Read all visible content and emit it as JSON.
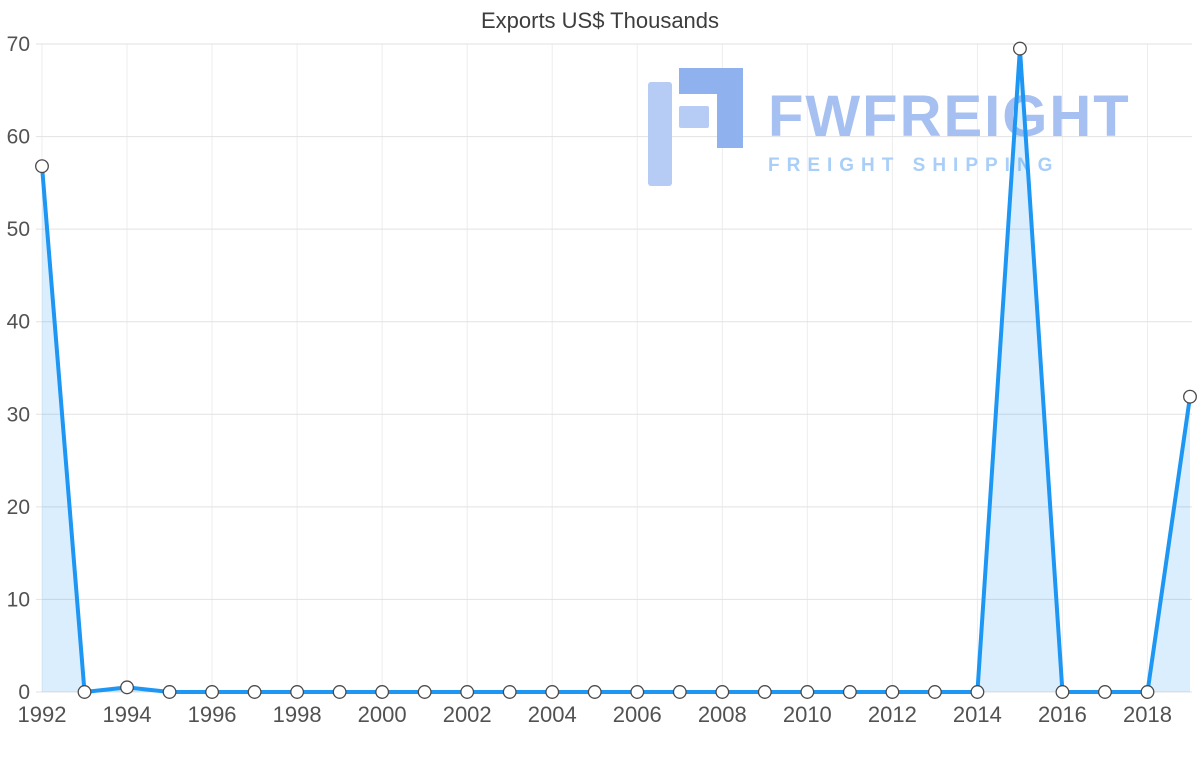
{
  "title": "Exports US$ Thousands",
  "watermark": {
    "brand": "FWFREIGHT",
    "tagline": "FREIGHT SHIPPING"
  },
  "chart_data": {
    "type": "area",
    "title": "Exports US$ Thousands",
    "x": [
      1992,
      1993,
      1994,
      1995,
      1996,
      1997,
      1998,
      1999,
      2000,
      2001,
      2002,
      2003,
      2004,
      2005,
      2006,
      2007,
      2008,
      2009,
      2010,
      2011,
      2012,
      2013,
      2014,
      2015,
      2016,
      2017,
      2018,
      2019
    ],
    "values": [
      56.8,
      0,
      0.5,
      0,
      0,
      0,
      0,
      0,
      0,
      0,
      0,
      0,
      0,
      0,
      0,
      0,
      0,
      0,
      0,
      0,
      0,
      0,
      0,
      69.5,
      0,
      0,
      0,
      31.9
    ],
    "ylim": [
      0,
      70
    ],
    "yticks": [
      0,
      10,
      20,
      30,
      40,
      50,
      60,
      70
    ],
    "xticks": [
      1992,
      1994,
      1996,
      1998,
      2000,
      2002,
      2004,
      2006,
      2008,
      2010,
      2012,
      2014,
      2016,
      2018
    ],
    "grid": true,
    "legend": "none",
    "xlabel": "",
    "ylabel": "",
    "colors": {
      "line": "#1d97f3",
      "area": "rgba(33,150,243,0.16)",
      "point_fill": "#ffffff",
      "point_stroke": "#4a4a4a",
      "grid_h": "#e2e2e2",
      "grid_v": "#ededed",
      "axis_text": "#525252",
      "title_text": "#3d3d3d"
    }
  }
}
